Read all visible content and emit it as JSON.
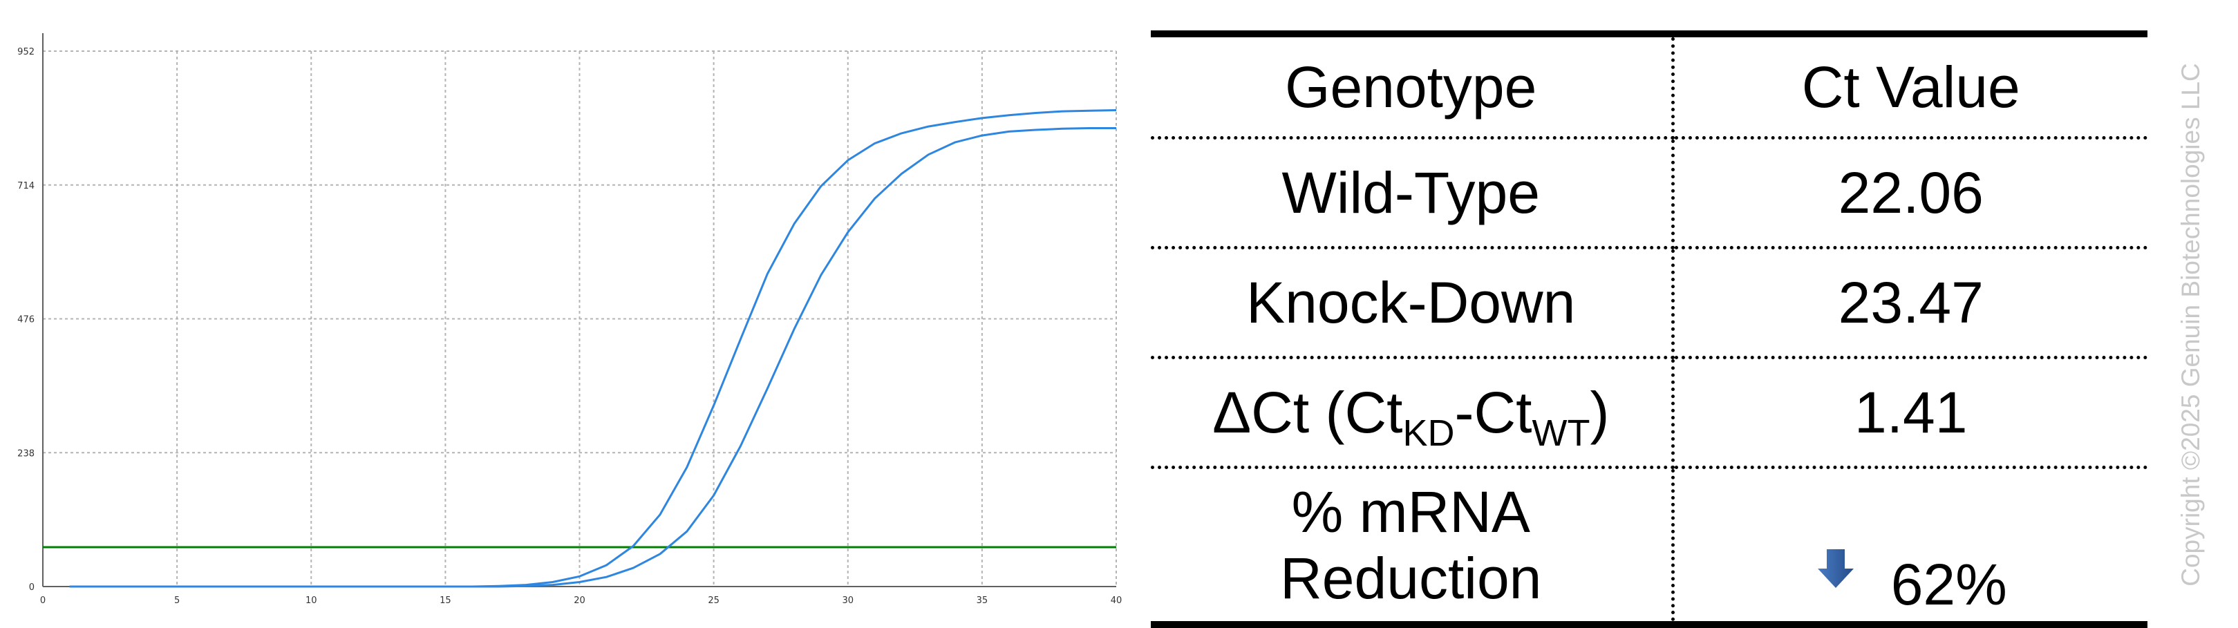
{
  "chart_data": {
    "type": "line",
    "xlabel": "",
    "ylabel": "",
    "xlim": [
      0,
      40
    ],
    "ylim": [
      0,
      952
    ],
    "x_ticks": [
      0,
      5,
      10,
      15,
      20,
      25,
      30,
      35,
      40
    ],
    "y_ticks": [
      0,
      238,
      476,
      714,
      952
    ],
    "grid": true,
    "threshold": 70,
    "colors": {
      "series": "#2e86de",
      "threshold": "#008000",
      "grid": "#b4b4b4",
      "axis": "#606060"
    },
    "series": [
      {
        "x": [
          1,
          2,
          3,
          4,
          5,
          6,
          7,
          8,
          9,
          10,
          11,
          12,
          13,
          14,
          15,
          16,
          17,
          18,
          19,
          20,
          21,
          22,
          23,
          24,
          25,
          26,
          27,
          28,
          29,
          30,
          31,
          32,
          33,
          34,
          35,
          36,
          37,
          38,
          39,
          40
        ],
        "values": [
          0,
          0,
          0,
          0,
          0,
          0,
          0,
          0,
          0,
          0,
          0,
          0,
          0,
          0,
          0,
          0,
          1,
          3,
          8,
          18,
          38,
          72,
          128,
          212,
          322,
          440,
          556,
          645,
          712,
          758,
          788,
          806,
          818,
          826,
          833,
          838,
          842,
          845,
          846,
          847
        ]
      },
      {
        "x": [
          1,
          2,
          3,
          4,
          5,
          6,
          7,
          8,
          9,
          10,
          11,
          12,
          13,
          14,
          15,
          16,
          17,
          18,
          19,
          20,
          21,
          22,
          23,
          24,
          25,
          26,
          27,
          28,
          29,
          30,
          31,
          32,
          33,
          34,
          35,
          36,
          37,
          38,
          39,
          40
        ],
        "values": [
          0,
          0,
          0,
          0,
          0,
          0,
          0,
          0,
          0,
          0,
          0,
          0,
          0,
          0,
          0,
          0,
          0,
          1,
          3,
          8,
          17,
          33,
          58,
          98,
          162,
          250,
          352,
          458,
          554,
          630,
          690,
          734,
          768,
          790,
          802,
          809,
          812,
          814,
          815,
          815
        ]
      }
    ]
  },
  "table": {
    "header": {
      "col1": "Genotype",
      "col2": "Ct Value"
    },
    "rows": {
      "wt": {
        "label": "Wild-Type",
        "value": "22.06"
      },
      "kd": {
        "label": "Knock-Down",
        "value": "23.47"
      },
      "dct": {
        "label_main": "ΔCt (Ct",
        "sub1": "KD",
        "label_mid": "-Ct",
        "sub2": "WT",
        "label_end": ")",
        "value": "1.41"
      },
      "reduction": {
        "label_line1": "% mRNA",
        "label_line2": "Reduction",
        "value": "62%",
        "icon": "down-arrow-icon",
        "icon_color": "#2f5f9f"
      }
    }
  },
  "watermark": "Copyright ©2025 Genuin Biotechnologies LLC"
}
